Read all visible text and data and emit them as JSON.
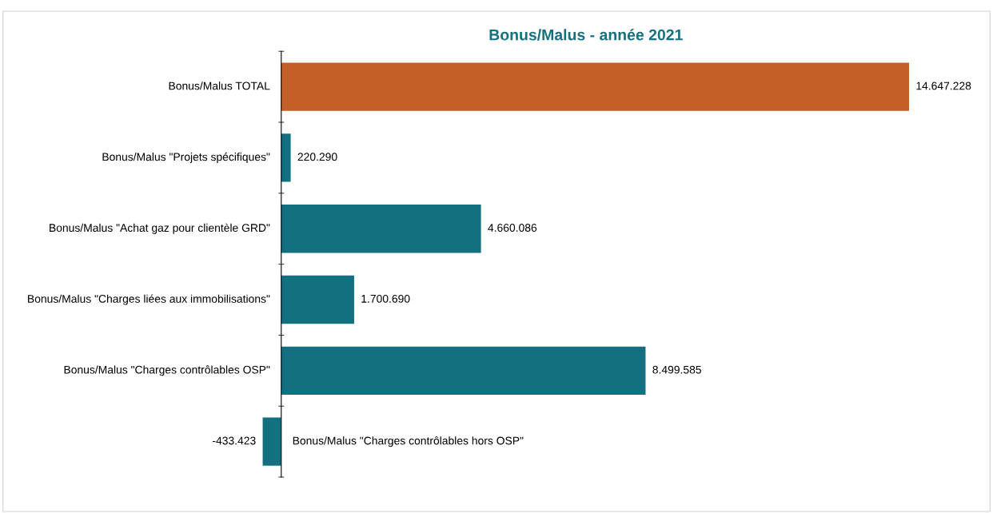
{
  "chart_data": {
    "type": "bar",
    "orientation": "horizontal",
    "title": "Bonus/Malus - année 2021",
    "categories": [
      "Bonus/Malus TOTAL",
      "Bonus/Malus \"Projets spécifiques\"",
      "Bonus/Malus \"Achat gaz pour clientèle GRD\"",
      "Bonus/Malus \"Charges liées aux immobilisations\"",
      "Bonus/Malus \"Charges contrôlables OSP\"",
      "Bonus/Malus \"Charges contrôlables hors OSP\""
    ],
    "values": [
      14647228,
      220290,
      4660086,
      1700690,
      8499585,
      -433423
    ],
    "value_labels": [
      "14.647.228",
      "220.290",
      "4.660.086",
      "1.700.690",
      "8.499.585",
      "-433.423"
    ],
    "colors": [
      "#c55f28",
      "#137080",
      "#137080",
      "#137080",
      "#137080",
      "#137080"
    ]
  }
}
